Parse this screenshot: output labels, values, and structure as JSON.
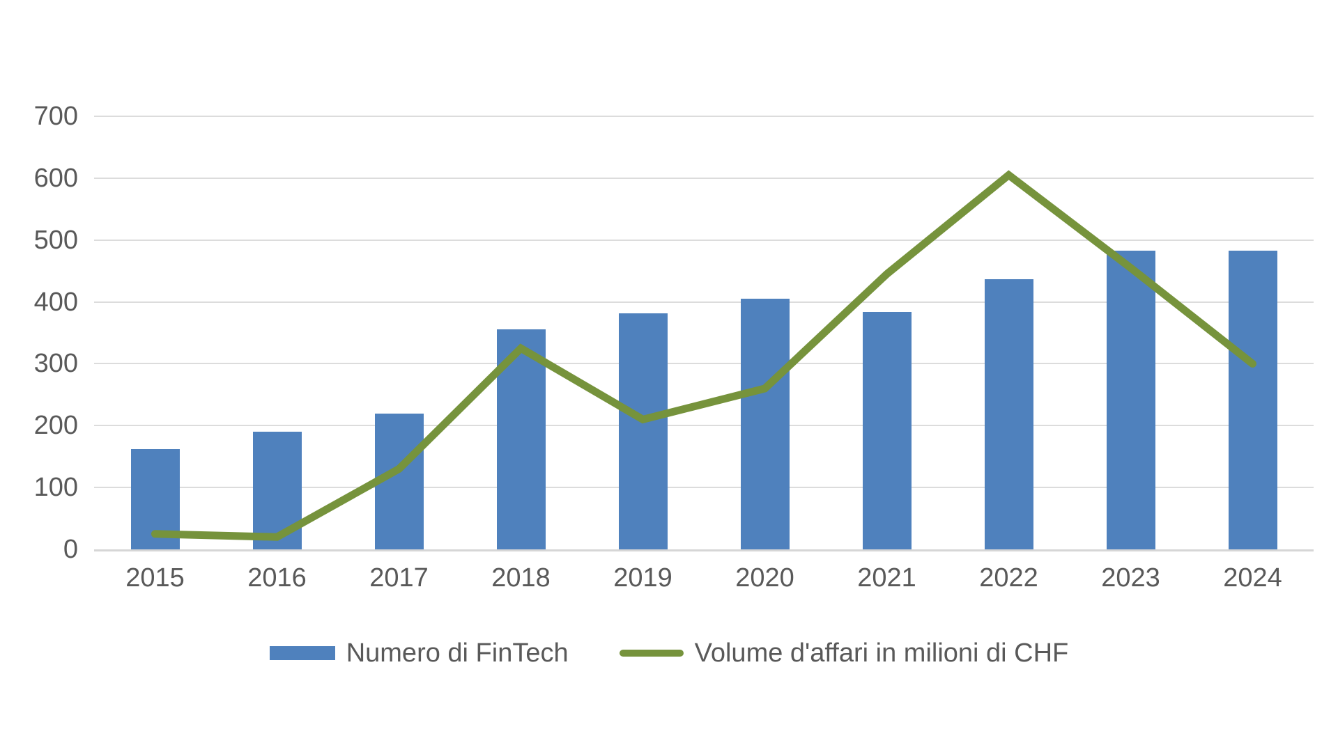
{
  "chart_data": {
    "type": "combo",
    "title": "",
    "categories": [
      "2015",
      "2016",
      "2017",
      "2018",
      "2019",
      "2020",
      "2021",
      "2022",
      "2023",
      "2024"
    ],
    "series": [
      {
        "name": "Numero di FinTech",
        "type": "bar",
        "color": "#4F81BD",
        "values": [
          162,
          190,
          220,
          356,
          382,
          405,
          384,
          437,
          483,
          483
        ]
      },
      {
        "name": "Volume d'affari in milioni di CHF",
        "type": "line",
        "color": "#76933C",
        "values": [
          25,
          20,
          130,
          325,
          210,
          260,
          445,
          605,
          455,
          300
        ]
      }
    ],
    "xlabel": "",
    "ylabel": "",
    "ylim": [
      0,
      700
    ],
    "ytick_step": 100,
    "y_ticks": [
      0,
      100,
      200,
      300,
      400,
      500,
      600,
      700
    ],
    "grid": true,
    "gridline_color": "#DCDCDC",
    "axis_label_color": "#595959",
    "legend_position": "bottom"
  }
}
